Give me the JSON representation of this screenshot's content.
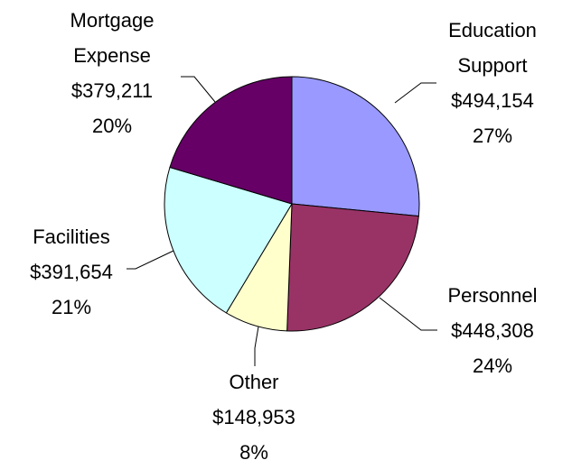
{
  "chart_data": {
    "type": "pie",
    "categories": [
      "Education Support",
      "Personnel",
      "Other",
      "Facilities",
      "Mortgage Expense"
    ],
    "values": [
      494154,
      448308,
      148953,
      391654,
      379211
    ],
    "value_labels": [
      "$494,154",
      "$448,308",
      "$148,953",
      "$391,654",
      "$379,211"
    ],
    "percent_labels": [
      "27%",
      "24%",
      "8%",
      "21%",
      "20%"
    ],
    "colors": [
      "#9999ff",
      "#993366",
      "#ffffcc",
      "#ccffff",
      "#660066"
    ]
  }
}
